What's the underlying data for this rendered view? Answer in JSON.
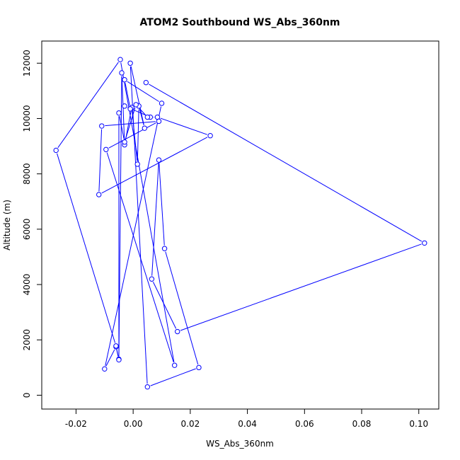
{
  "chart_data": {
    "type": "line",
    "title": "ATOM2 Southbound WS_Abs_360nm",
    "xlabel": "WS_Abs_360nm",
    "ylabel": "Altitude (m)",
    "xlim": [
      -0.032,
      0.107
    ],
    "ylim": [
      -500,
      12800
    ],
    "x_ticks": [
      -0.02,
      0.0,
      0.02,
      0.04,
      0.06,
      0.08,
      0.1
    ],
    "x_tick_labels": [
      "-0.02",
      "0.00",
      "0.02",
      "0.04",
      "0.06",
      "0.08",
      "0.10"
    ],
    "y_ticks": [
      0,
      2000,
      4000,
      6000,
      8000,
      10000,
      12000
    ],
    "y_tick_labels": [
      "0",
      "2000",
      "4000",
      "6000",
      "8000",
      "10000",
      "12000"
    ],
    "grid": false,
    "legend": false,
    "series_color": "#0000ff",
    "x": [
      0.0045,
      0.102,
      0.0155,
      0.0065,
      0.009,
      0.011,
      0.023,
      0.005,
      -0.001,
      0.004,
      0.002,
      0.0015,
      -0.0005,
      -0.003,
      -0.004,
      -0.005,
      -0.006,
      -0.01,
      0.01,
      -0.003,
      -0.001,
      -0.003,
      0.006,
      0.0085,
      0.027,
      -0.012,
      -0.011,
      0.009,
      -0.0095,
      0.0145,
      -0.0045,
      -0.027,
      -0.006,
      -0.005,
      -0.005,
      -0.003,
      0.001,
      0.005
    ],
    "y": [
      11300,
      5500,
      2300,
      4200,
      8500,
      5300,
      1000,
      300,
      12000,
      9650,
      10450,
      8350,
      10400,
      9050,
      11650,
      1300,
      1750,
      950,
      10550,
      11400,
      10350,
      10450,
      10050,
      10050,
      9380,
      7250,
      9730,
      9900,
      8880,
      1080,
      12130,
      8850,
      1780,
      1280,
      10200,
      9150,
      10500,
      10050
    ]
  }
}
